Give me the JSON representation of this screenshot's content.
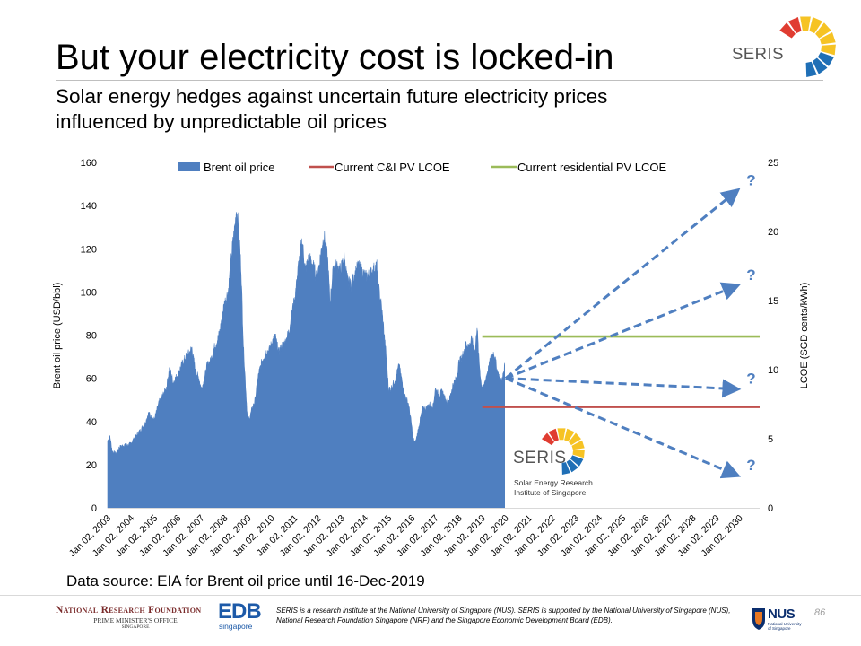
{
  "slide": {
    "title": "But your electricity cost is locked-in",
    "subtitle_line1": "Solar energy hedges against uncertain future electricity prices",
    "subtitle_line2": "influenced by unpredictable oil prices",
    "data_source": "Data source: EIA for Brent oil price until 16-Dec-2019",
    "page_number": "86"
  },
  "logos": {
    "seris_top": "SERIS",
    "seris_box": "SERIS",
    "seris_box_sub_line1": "Solar Energy Research",
    "seris_box_sub_line2": "Institute of Singapore",
    "nrf_line1": "National Research Foundation",
    "nrf_line2": "PRIME MINISTER'S OFFICE",
    "nrf_line3": "SINGAPORE",
    "edb_main": "EDB",
    "edb_sub": "singapore",
    "nus_main": "NUS",
    "nus_sub": "National University of Singapore"
  },
  "footer": {
    "note": "SERIS is a research institute at the National University of Singapore (NUS). SERIS is supported by the National University of Singapore (NUS), National Research Foundation Singapore (NRF) and the Singapore Economic Development Board (EDB)."
  },
  "colors": {
    "bar": "#4f7fc0",
    "ci_line": "#c0504d",
    "res_line": "#9bbb59",
    "arrow": "#4f7fc0",
    "question": "#4f7fc0"
  },
  "chart_data": {
    "type": "area",
    "title": "",
    "ylabel": "Brent oil price (USD/bbl)",
    "y2label": "LCOE (SGD cents/kWh)",
    "ylim": [
      0,
      160
    ],
    "y2lim": [
      0,
      25
    ],
    "yticks": [
      0,
      20,
      40,
      60,
      80,
      100,
      120,
      140,
      160
    ],
    "y2ticks": [
      0,
      5,
      10,
      15,
      20,
      25
    ],
    "x_categories": [
      "Jan 02, 2003",
      "Jan 02, 2004",
      "Jan 02, 2005",
      "Jan 02, 2006",
      "Jan 02, 2007",
      "Jan 02, 2008",
      "Jan 02, 2009",
      "Jan 02, 2010",
      "Jan 02, 2011",
      "Jan 02, 2012",
      "Jan 02, 2013",
      "Jan 02, 2014",
      "Jan 02, 2015",
      "Jan 02, 2016",
      "Jan 02, 2017",
      "Jan 02, 2018",
      "Jan 02, 2019",
      "Jan 02, 2020",
      "Jan 02, 2021",
      "Jan 02, 2022",
      "Jan 02, 2023",
      "Jan 02, 2024",
      "Jan 02, 2025",
      "Jan 02, 2026",
      "Jan 02, 2027",
      "Jan 02, 2028",
      "Jan 02, 2029",
      "Jan 02, 2030"
    ],
    "legend": [
      "Brent oil price",
      "Current C&I PV LCOE",
      "Current residential PV LCOE"
    ],
    "legend_position": "top",
    "series": [
      {
        "name": "Brent oil price",
        "kind": "area",
        "axis": "left",
        "x": [
          2003.0,
          2003.1,
          2003.2,
          2003.35,
          2003.5,
          2003.7,
          2003.9,
          2004.0,
          2004.2,
          2004.4,
          2004.6,
          2004.75,
          2004.85,
          2005.0,
          2005.2,
          2005.35,
          2005.5,
          2005.65,
          2005.8,
          2006.0,
          2006.2,
          2006.35,
          2006.5,
          2006.6,
          2006.75,
          2006.9,
          2007.0,
          2007.1,
          2007.25,
          2007.4,
          2007.55,
          2007.7,
          2007.8,
          2007.9,
          2008.0,
          2008.15,
          2008.3,
          2008.45,
          2008.5,
          2008.6,
          2008.7,
          2008.8,
          2008.9,
          2008.97,
          2009.05,
          2009.15,
          2009.3,
          2009.45,
          2009.6,
          2009.75,
          2009.9,
          2010.0,
          2010.15,
          2010.3,
          2010.45,
          2010.6,
          2010.75,
          2010.9,
          2011.0,
          2011.15,
          2011.3,
          2011.45,
          2011.6,
          2011.75,
          2011.9,
          2012.0,
          2012.15,
          2012.25,
          2012.4,
          2012.5,
          2012.65,
          2012.8,
          2012.95,
          2013.1,
          2013.25,
          2013.4,
          2013.55,
          2013.7,
          2013.85,
          2014.0,
          2014.2,
          2014.4,
          2014.5,
          2014.6,
          2014.7,
          2014.8,
          2014.9,
          2015.0,
          2015.1,
          2015.3,
          2015.45,
          2015.55,
          2015.7,
          2015.85,
          2015.95,
          2016.05,
          2016.15,
          2016.3,
          2016.45,
          2016.6,
          2016.75,
          2016.9,
          2017.0,
          2017.15,
          2017.3,
          2017.45,
          2017.6,
          2017.75,
          2017.9,
          2018.0,
          2018.15,
          2018.3,
          2018.45,
          2018.55,
          2018.7,
          2018.78,
          2018.85,
          2018.95,
          2019.05,
          2019.15,
          2019.3,
          2019.38,
          2019.5,
          2019.65,
          2019.75,
          2019.85,
          2019.96
        ],
        "y": [
          31,
          33,
          26,
          25,
          28,
          29,
          29,
          30,
          33,
          36,
          39,
          44,
          42,
          41,
          49,
          52,
          55,
          65,
          58,
          62,
          67,
          70,
          72,
          74,
          63,
          60,
          55,
          58,
          66,
          68,
          74,
          78,
          82,
          90,
          95,
          100,
          118,
          132,
          138,
          130,
          110,
          75,
          55,
          42,
          41,
          45,
          50,
          62,
          68,
          72,
          73,
          76,
          80,
          72,
          75,
          77,
          82,
          92,
          97,
          112,
          124,
          110,
          116,
          113,
          108,
          110,
          121,
          126,
          115,
          95,
          112,
          112,
          110,
          116,
          105,
          103,
          108,
          112,
          110,
          107,
          108,
          111,
          112,
          100,
          93,
          82,
          70,
          55,
          55,
          60,
          66,
          60,
          52,
          48,
          41,
          32,
          30,
          38,
          46,
          46,
          48,
          47,
          55,
          52,
          54,
          49,
          50,
          57,
          60,
          67,
          70,
          76,
          75,
          78,
          72,
          85,
          70,
          58,
          55,
          60,
          66,
          70,
          72,
          63,
          60,
          59,
          66
        ],
        "color": "#4f7fc0"
      },
      {
        "name": "Current C&I PV LCOE",
        "kind": "line",
        "axis": "right",
        "x": [
          2019.0,
          2030.85
        ],
        "y": [
          7.3,
          7.3
        ],
        "color": "#c0504d"
      },
      {
        "name": "Current residential PV LCOE",
        "kind": "line",
        "axis": "right",
        "x": [
          2019.0,
          2030.85
        ],
        "y": [
          12.4,
          12.4
        ],
        "color": "#9bbb59"
      }
    ],
    "annotations": [
      {
        "label": "?",
        "from_x": 2020.0,
        "from_y": 60,
        "to_x": 2029.9,
        "to_y": 147
      },
      {
        "label": "?",
        "from_x": 2020.0,
        "from_y": 60,
        "to_x": 2029.9,
        "to_y": 103
      },
      {
        "label": "?",
        "from_x": 2020.0,
        "from_y": 60,
        "to_x": 2029.9,
        "to_y": 55
      },
      {
        "label": "?",
        "from_x": 2020.0,
        "from_y": 60,
        "to_x": 2029.9,
        "to_y": 15
      }
    ]
  }
}
